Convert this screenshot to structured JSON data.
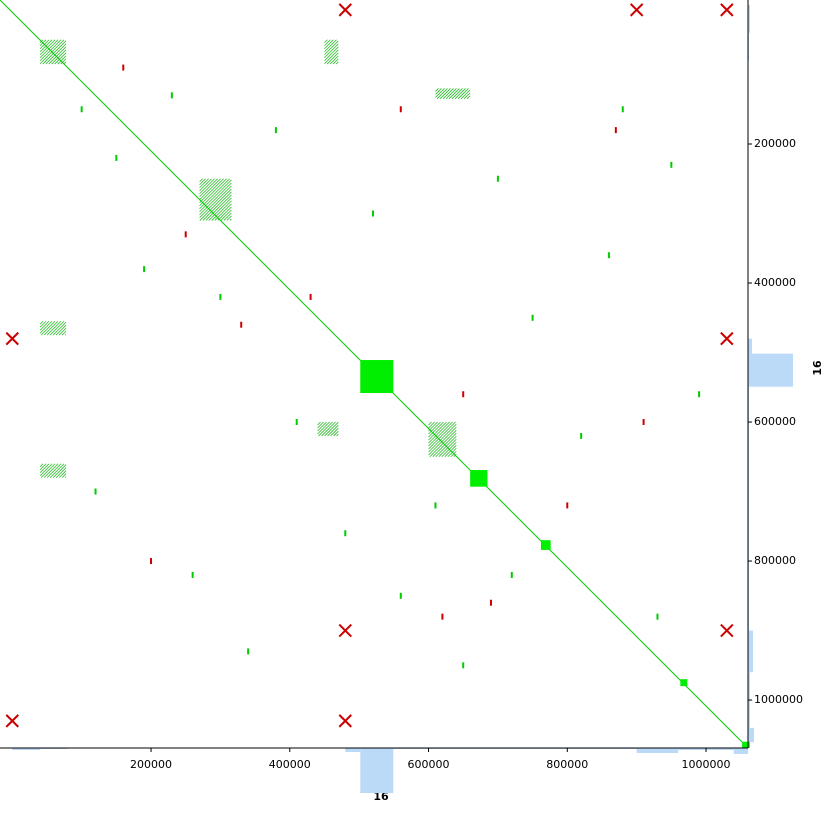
{
  "chart_data": {
    "type": "dotplot",
    "x_label": "16",
    "y_label": "16",
    "xlim": [
      -17700,
      1060500
    ],
    "ylim": [
      -7200,
      1069000
    ],
    "xticks": [
      200000,
      400000,
      600000,
      800000,
      1000000
    ],
    "yticks": [
      200000,
      400000,
      600000,
      800000,
      1000000
    ],
    "diagonal": {
      "color": "#00cc00",
      "x": [
        -17700,
        1060500
      ],
      "y": [
        -7200,
        1069000
      ]
    },
    "blocks": {
      "color": "#00ee00",
      "x0": [
        501600,
        660000,
        762000,
        963000,
        1052000
      ],
      "x1": [
        549200,
        685000,
        776000,
        973000,
        1063000
      ],
      "y0": [
        510800,
        669000,
        770000,
        970000,
        1060000
      ],
      "y1": [
        558300,
        693000,
        784000,
        980000,
        1069000
      ]
    },
    "regions": {
      "color": "#22bb22",
      "x0": [
        40000,
        40000,
        270000,
        450000,
        40000,
        600000,
        610000,
        440000
      ],
      "x1": [
        77500,
        77500,
        316000,
        470000,
        77500,
        640000,
        660000,
        470000
      ],
      "y0": [
        50000,
        455000,
        250000,
        50000,
        660000,
        600000,
        120000,
        600000
      ],
      "y1": [
        85000,
        475000,
        310000,
        85000,
        680000,
        650000,
        135000,
        620000
      ]
    },
    "series": [
      {
        "color": "#00cc00",
        "marker": "dot",
        "x": [
          100000,
          150000,
          190000,
          230000,
          300000,
          380000,
          410000,
          520000,
          560000,
          610000,
          700000,
          750000,
          820000,
          880000,
          930000,
          990000,
          120000,
          260000,
          340000,
          650000,
          720000,
          860000,
          950000,
          480000
        ],
        "y": [
          150000,
          220000,
          380000,
          130000,
          420000,
          180000,
          600000,
          300000,
          850000,
          720000,
          250000,
          450000,
          620000,
          150000,
          880000,
          560000,
          700000,
          820000,
          930000,
          950000,
          820000,
          360000,
          230000,
          760000
        ]
      },
      {
        "color": "#cc0000",
        "marker": "cross",
        "x": [
          480000,
          900000,
          1030000,
          0,
          0,
          480000,
          1030000,
          1030000,
          480000
        ],
        "y": [
          7000,
          7000,
          7000,
          480000,
          1030000,
          1030000,
          480000,
          900000,
          900000
        ]
      },
      {
        "color": "#cc0000",
        "marker": "dot",
        "x": [
          160000,
          250000,
          330000,
          430000,
          560000,
          620000,
          690000,
          800000,
          870000,
          910000,
          200000,
          650000
        ],
        "y": [
          90000,
          330000,
          460000,
          420000,
          150000,
          880000,
          860000,
          720000,
          180000,
          600000,
          800000,
          560000
        ]
      }
    ],
    "histogram": {
      "color": "#bbdaf7",
      "lim": [
        0,
        45
      ],
      "bins": [
        0,
        40000,
        80000,
        480000,
        501600,
        549200,
        900000,
        960000,
        1040000,
        1060500
      ],
      "counts": [
        2,
        1,
        0,
        4,
        45,
        1,
        5,
        2,
        6
      ]
    }
  }
}
